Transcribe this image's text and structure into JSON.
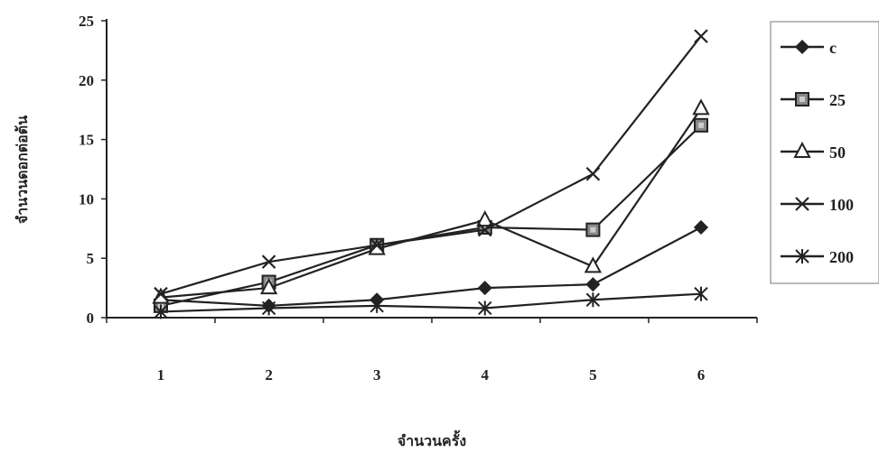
{
  "chart_data": {
    "type": "line",
    "title": "",
    "xlabel": "จำนวนครั้ง",
    "ylabel": "จำนวนดอกต่อต้น",
    "categories": [
      "1",
      "2",
      "3",
      "4",
      "5",
      "6"
    ],
    "ylim": [
      0,
      25
    ],
    "yticks": [
      0,
      5,
      10,
      15,
      20,
      25
    ],
    "grid": false,
    "legend_position": "right",
    "series": [
      {
        "name": "c",
        "marker": "diamond",
        "values": [
          1.5,
          1.0,
          1.5,
          2.5,
          2.8,
          7.6
        ]
      },
      {
        "name": "25",
        "marker": "square",
        "values": [
          1.0,
          3.0,
          6.1,
          7.6,
          7.4,
          16.2
        ]
      },
      {
        "name": "50",
        "marker": "triangle",
        "values": [
          1.7,
          2.5,
          5.8,
          8.2,
          4.3,
          17.6
        ]
      },
      {
        "name": "100",
        "marker": "x",
        "values": [
          2.0,
          4.7,
          6.1,
          7.4,
          12.1,
          23.7
        ]
      },
      {
        "name": "200",
        "marker": "asterisk",
        "values": [
          0.5,
          0.8,
          1.0,
          0.8,
          1.5,
          2.0
        ]
      }
    ],
    "colors": {
      "line": "#222222",
      "marker_fill": "#ffffff",
      "square_fill": "#888888",
      "diamond_fill": "#222222"
    }
  }
}
